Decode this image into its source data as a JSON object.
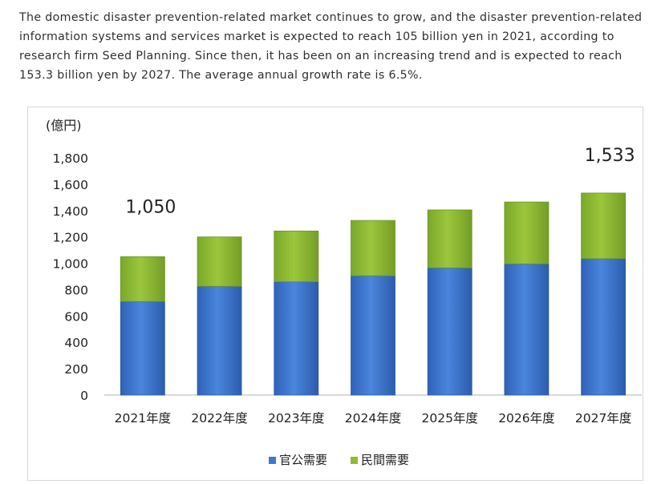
{
  "article": {
    "paragraph": "The domestic disaster prevention-related market continues to grow, and the disaster prevention-related information systems and services market is expected to reach 105 billion yen in 2021, according to research firm Seed Planning. Since then, it has been on an increasing trend and is expected to reach 153.3 billion yen by 2027. The average annual growth rate is 6.5%."
  },
  "chart_data": {
    "type": "bar",
    "stacked": true,
    "title": "",
    "ylabel": "(億円)",
    "xlabel": "",
    "categories": [
      "2021年度",
      "2022年度",
      "2023年度",
      "2024年度",
      "2025年度",
      "2026年度",
      "2027年度"
    ],
    "series": [
      {
        "name": "官公需要",
        "values": [
          710,
          825,
          860,
          905,
          965,
          995,
          1035
        ],
        "color": "#3f78cf"
      },
      {
        "name": "民間需要",
        "values": [
          340,
          375,
          385,
          420,
          440,
          470,
          498
        ],
        "color": "#8fbc2e"
      }
    ],
    "ylim": [
      0,
      1800
    ],
    "yticks": [
      "0",
      "200",
      "400",
      "600",
      "800",
      "1,000",
      "1,200",
      "1,400",
      "1,600",
      "1,800"
    ],
    "grid": false,
    "legend": "bottom",
    "annotations": [
      {
        "category": "2021年度",
        "text": "1,050"
      },
      {
        "category": "2027年度",
        "text": "1,533"
      }
    ]
  }
}
